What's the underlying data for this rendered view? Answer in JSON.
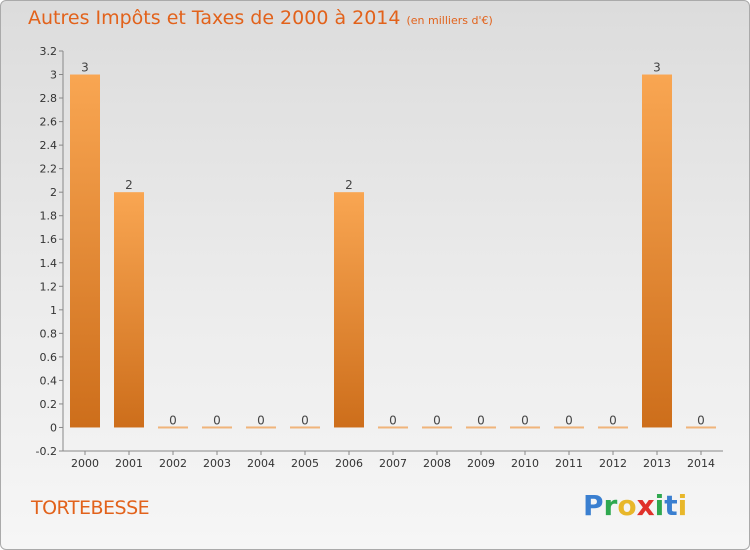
{
  "header": {
    "title": "Autres Impôts et Taxes de 2000 à 2014",
    "subtitle": "(en milliers d'€)"
  },
  "footer": {
    "commune": "TORTEBESSE",
    "logo_letters": [
      {
        "ch": "P",
        "color": "#3a7fd0"
      },
      {
        "ch": "r",
        "color": "#2fa84f"
      },
      {
        "ch": "o",
        "color": "#e8b72a"
      },
      {
        "ch": "x",
        "color": "#e0302a"
      },
      {
        "ch": "i",
        "color": "#2fa84f"
      },
      {
        "ch": "t",
        "color": "#3a7fd0"
      },
      {
        "ch": "i",
        "color": "#e8b72a"
      }
    ]
  },
  "colors": {
    "accent": "#e2621b",
    "bar_light": "#f9a652",
    "bar_dark": "#cd6e1b"
  },
  "chart_data": {
    "type": "bar",
    "categories": [
      "2000",
      "2001",
      "2002",
      "2003",
      "2004",
      "2005",
      "2006",
      "2007",
      "2008",
      "2009",
      "2010",
      "2011",
      "2012",
      "2013",
      "2014"
    ],
    "values": [
      3,
      2,
      0,
      0,
      0,
      0,
      2,
      0,
      0,
      0,
      0,
      0,
      0,
      3,
      0
    ],
    "value_labels": [
      "3",
      "2",
      "0",
      "0",
      "0",
      "0",
      "2",
      "0",
      "0",
      "0",
      "0",
      "0",
      "0",
      "3",
      "0"
    ],
    "title": "Autres Impôts et Taxes de 2000 à 2014",
    "xlabel": "",
    "ylabel": "",
    "ylim": [
      -0.2,
      3.2
    ],
    "yticks": [
      -0.2,
      0,
      0.2,
      0.4,
      0.6,
      0.8,
      1,
      1.2,
      1.4,
      1.6,
      1.8,
      2,
      2.2,
      2.4,
      2.6,
      2.8,
      3,
      3.2
    ],
    "ytick_labels": [
      "-0.2",
      "0",
      "0.2",
      "0.4",
      "0.6",
      "0.8",
      "1",
      "1.2",
      "1.4",
      "1.6",
      "1.8",
      "2",
      "2.2",
      "2.4",
      "2.6",
      "2.8",
      "3",
      "3.2"
    ],
    "grid": false
  }
}
